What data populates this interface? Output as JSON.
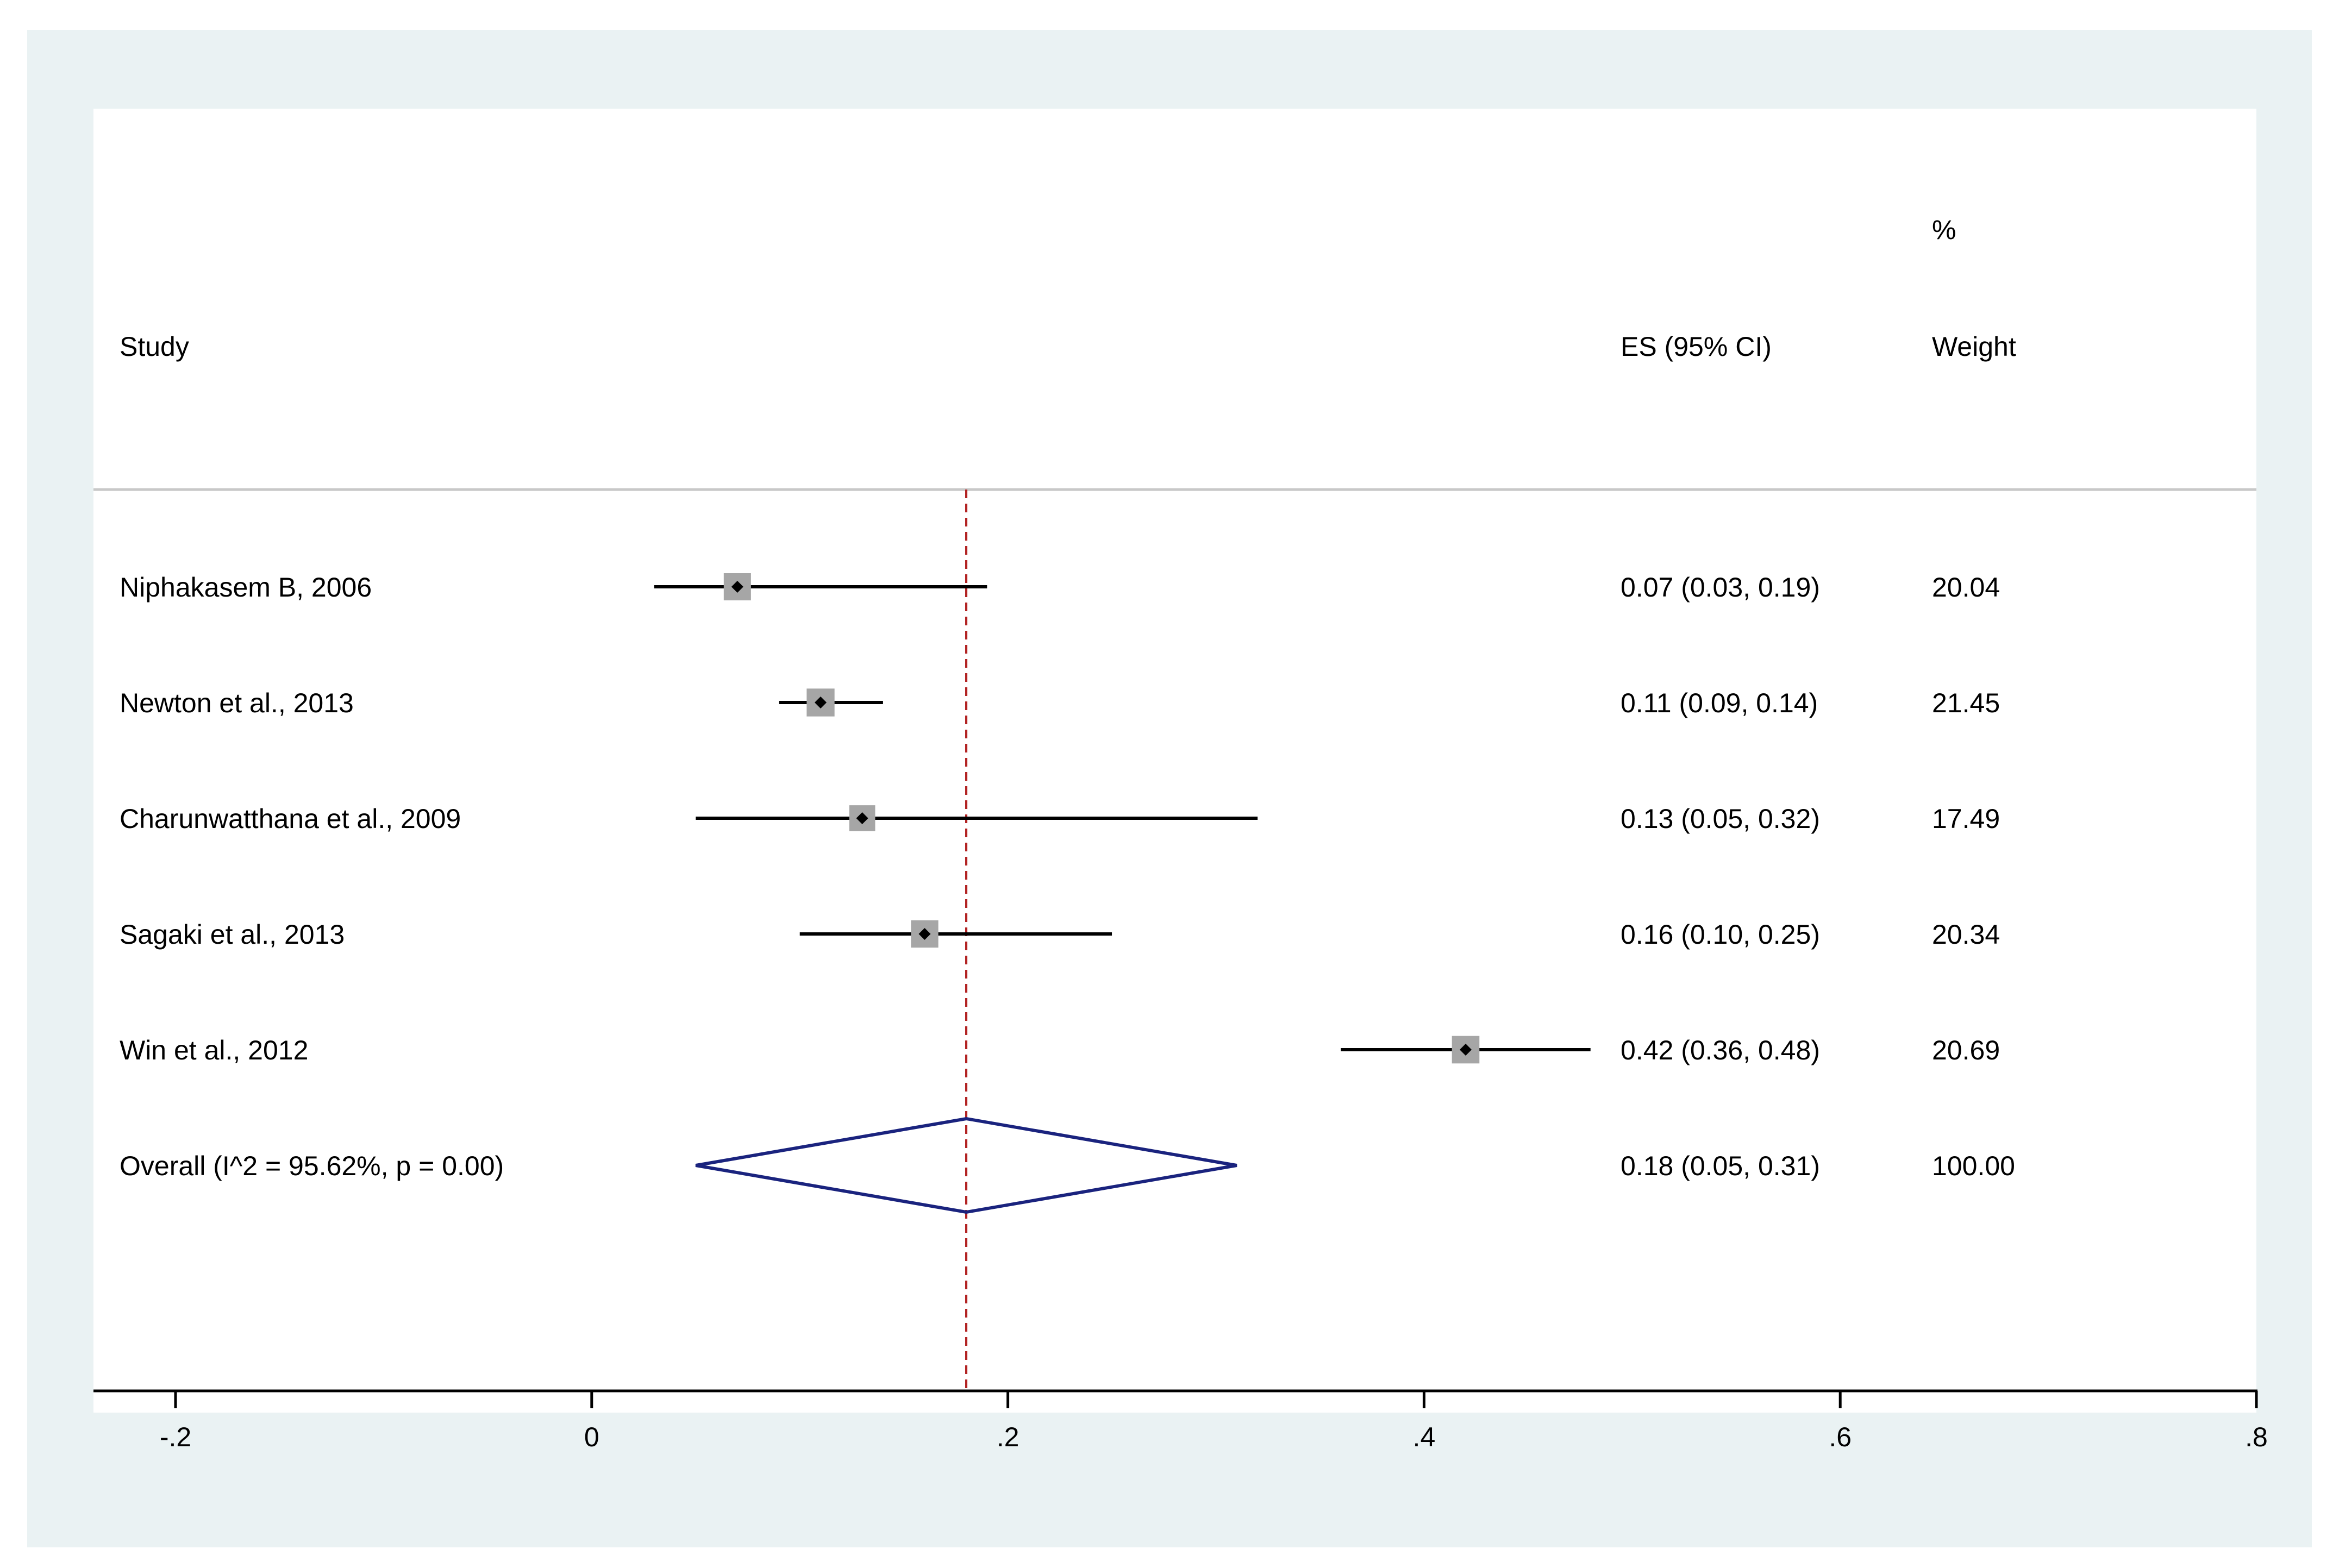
{
  "chart_data": {
    "type": "forest",
    "header": {
      "study": "Study",
      "es": "ES (95% CI)",
      "weight_top": "%",
      "weight_bottom": "Weight"
    },
    "studies": [
      {
        "label": "Niphakasem B, 2006",
        "es": 0.07,
        "lower": 0.03,
        "upper": 0.19,
        "es_text": "0.07 (0.03, 0.19)",
        "weight": 20.04,
        "weight_text": "20.04"
      },
      {
        "label": "Newton et al., 2013",
        "es": 0.11,
        "lower": 0.09,
        "upper": 0.14,
        "es_text": "0.11 (0.09, 0.14)",
        "weight": 21.45,
        "weight_text": "21.45"
      },
      {
        "label": "Charunwatthana et al., 2009",
        "es": 0.13,
        "lower": 0.05,
        "upper": 0.32,
        "es_text": "0.13 (0.05, 0.32)",
        "weight": 17.49,
        "weight_text": "17.49"
      },
      {
        "label": "Sagaki et al., 2013",
        "es": 0.16,
        "lower": 0.1,
        "upper": 0.25,
        "es_text": "0.16 (0.10, 0.25)",
        "weight": 20.34,
        "weight_text": "20.34"
      },
      {
        "label": "Win et al., 2012",
        "es": 0.42,
        "lower": 0.36,
        "upper": 0.48,
        "es_text": "0.42 (0.36, 0.48)",
        "weight": 20.69,
        "weight_text": "20.69"
      }
    ],
    "overall": {
      "label": "Overall  (I^2 = 95.62%, p = 0.00)",
      "es": 0.18,
      "lower": 0.05,
      "upper": 0.31,
      "es_text": "0.18 (0.05, 0.31)",
      "weight_text": "100.00"
    },
    "xlim": [
      -0.2,
      0.8
    ],
    "ticks": [
      {
        "value": -0.2,
        "label": "-.2"
      },
      {
        "value": 0,
        "label": "0"
      },
      {
        "value": 0.2,
        "label": ".2"
      },
      {
        "value": 0.4,
        "label": ".4"
      },
      {
        "value": 0.6,
        "label": ".6"
      },
      {
        "value": 0.8,
        "label": ".8"
      }
    ],
    "reference_line": 0.18
  },
  "colors": {
    "frame_background": "#eaf2f3",
    "plot_background": "#ffffff",
    "reference_line": "#b22222",
    "diamond": "#1a237e",
    "ci_line": "#000000",
    "weight_box": "#a6a6a6",
    "separator": "#c8c8c8"
  }
}
